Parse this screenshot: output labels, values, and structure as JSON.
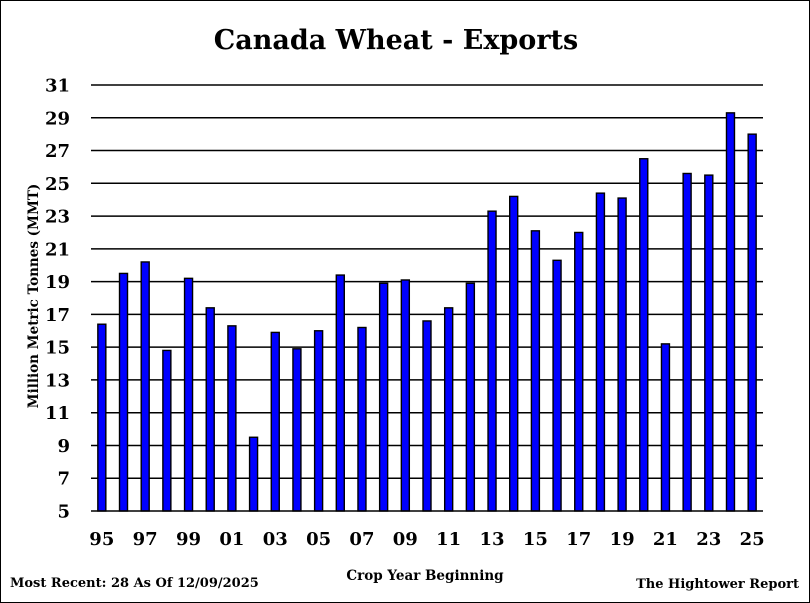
{
  "chart_data": {
    "type": "bar",
    "title": "Canada Wheat - Exports",
    "xlabel": "Crop Year Beginning",
    "ylabel": "Million Metric Tonnes (MMT)",
    "ylim": [
      5,
      31
    ],
    "yticks": [
      5,
      7,
      9,
      11,
      13,
      15,
      17,
      19,
      21,
      23,
      25,
      27,
      29,
      31
    ],
    "categories": [
      "95",
      "96",
      "97",
      "98",
      "99",
      "00",
      "01",
      "02",
      "03",
      "04",
      "05",
      "06",
      "07",
      "08",
      "09",
      "10",
      "11",
      "12",
      "13",
      "14",
      "15",
      "16",
      "17",
      "18",
      "19",
      "20",
      "21",
      "22",
      "23",
      "24",
      "25"
    ],
    "xtick_labels": [
      "95",
      "97",
      "99",
      "01",
      "03",
      "05",
      "07",
      "09",
      "11",
      "13",
      "15",
      "17",
      "19",
      "21",
      "23",
      "25"
    ],
    "values": [
      16.4,
      19.5,
      20.2,
      14.8,
      19.2,
      17.4,
      16.3,
      9.5,
      15.9,
      14.9,
      16.0,
      19.4,
      16.2,
      18.9,
      19.1,
      16.6,
      17.4,
      18.9,
      23.3,
      24.2,
      22.1,
      20.3,
      22.0,
      24.4,
      24.1,
      26.5,
      15.2,
      25.6,
      25.5,
      29.3,
      28.0
    ],
    "bar_color": "#0000ff",
    "bar_edge_color": "#000000",
    "grid": true,
    "legend": "none"
  },
  "footer": {
    "left": "Most Recent: 28 As Of 12/09/2025",
    "right": "The Hightower Report"
  }
}
